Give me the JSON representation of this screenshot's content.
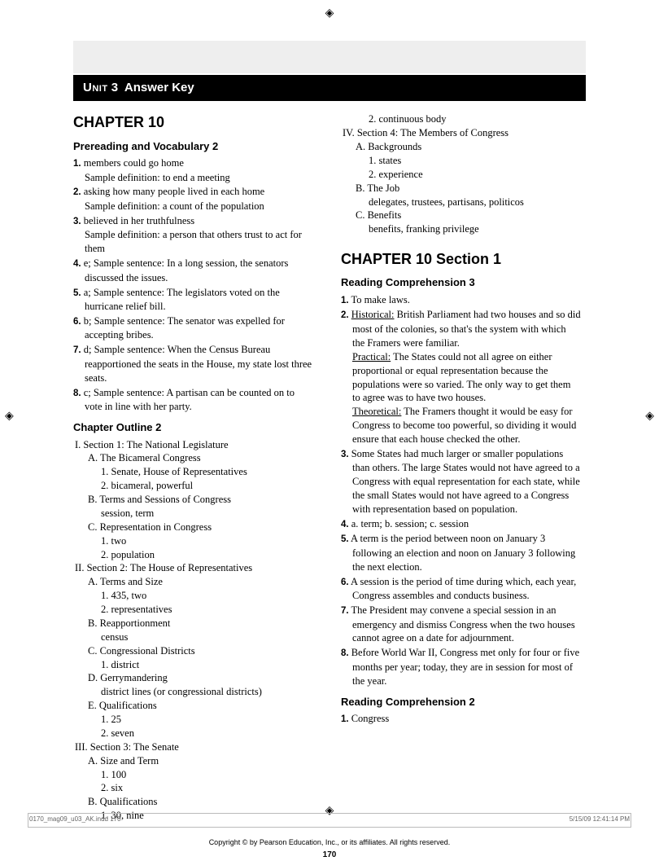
{
  "reg_mark": "◈",
  "header": {
    "unit_label": "Unit",
    "unit_num": "3",
    "title": "Answer Key"
  },
  "left": {
    "chapter": "CHAPTER 10",
    "sec1": "Prereading and Vocabulary  2",
    "items1": [
      {
        "n": "1.",
        "t": "members could go home\nSample definition: to end a meeting"
      },
      {
        "n": "2.",
        "t": "asking how many people lived in each home\nSample definition: a count of the population"
      },
      {
        "n": "3.",
        "t": "believed in her truthfulness\nSample definition: a person that others trust to act for them"
      },
      {
        "n": "4.",
        "t": "e; Sample sentence: In a long session, the senators discussed the issues."
      },
      {
        "n": "5.",
        "t": "a; Sample sentence: The legislators voted on the hurricane relief bill."
      },
      {
        "n": "6.",
        "t": "b; Sample sentence: The senator was expelled for accepting bribes."
      },
      {
        "n": "7.",
        "t": "d; Sample sentence: When the Census Bureau reapportioned the seats in the House, my state lost three seats."
      },
      {
        "n": "8.",
        "t": "c; Sample sentence: A partisan can be counted on to vote in line with her party."
      }
    ],
    "sec2": "Chapter Outline  2",
    "outline": [
      {
        "lv": 1,
        "t": "I. Section 1: The National Legislature"
      },
      {
        "lv": 2,
        "t": "A. The Bicameral Congress"
      },
      {
        "lv": 3,
        "t": "1. Senate, House of Representatives"
      },
      {
        "lv": 3,
        "t": "2. bicameral, powerful"
      },
      {
        "lv": 2,
        "t": "B. Terms and Sessions of Congress"
      },
      {
        "lv": 3,
        "t": "session, term"
      },
      {
        "lv": 2,
        "t": "C. Representation in Congress"
      },
      {
        "lv": 3,
        "t": "1. two"
      },
      {
        "lv": 3,
        "t": "2. population"
      },
      {
        "lv": 1,
        "t": "II. Section 2: The House of Representatives"
      },
      {
        "lv": 2,
        "t": "A. Terms and Size"
      },
      {
        "lv": 3,
        "t": "1. 435, two"
      },
      {
        "lv": 3,
        "t": "2. representatives"
      },
      {
        "lv": 2,
        "t": "B. Reapportionment"
      },
      {
        "lv": 3,
        "t": "census"
      },
      {
        "lv": 2,
        "t": "C. Congressional Districts"
      },
      {
        "lv": 3,
        "t": "1. district"
      },
      {
        "lv": 2,
        "t": "D. Gerrymandering"
      },
      {
        "lv": 3,
        "t": "district lines (or congressional districts)"
      },
      {
        "lv": 2,
        "t": "E. Qualifications"
      },
      {
        "lv": 3,
        "t": "1. 25"
      },
      {
        "lv": 3,
        "t": "2. seven"
      },
      {
        "lv": 1,
        "t": "III. Section 3: The Senate"
      },
      {
        "lv": 2,
        "t": "A. Size and Term"
      },
      {
        "lv": 3,
        "t": "1. 100"
      },
      {
        "lv": 3,
        "t": "2. six"
      },
      {
        "lv": 2,
        "t": "B. Qualifications"
      },
      {
        "lv": 3,
        "t": "1. 30, nine"
      }
    ]
  },
  "right": {
    "outline_cont": [
      {
        "lv": 3,
        "t": "2. continuous body"
      },
      {
        "lv": 1,
        "t": "IV. Section 4: The Members of Congress"
      },
      {
        "lv": 2,
        "t": "A. Backgrounds"
      },
      {
        "lv": 3,
        "t": "1. states"
      },
      {
        "lv": 3,
        "t": "2. experience"
      },
      {
        "lv": 2,
        "t": "B. The Job"
      },
      {
        "lv": 3,
        "t": "delegates, trustees, partisans, politicos"
      },
      {
        "lv": 2,
        "t": "C. Benefits"
      },
      {
        "lv": 3,
        "t": "benefits, franking privilege"
      }
    ],
    "chapter2": "CHAPTER 10  Section 1",
    "sec3": "Reading Comprehension  3",
    "items3": [
      {
        "n": "1.",
        "html": "To make laws."
      },
      {
        "n": "2.",
        "html": "<span class='u'>Historical:</span> British Parliament had two houses and so did most of the colonies, so that's the system with which the Framers were familiar.<br><span class='u'>Practical:</span> The States could not all agree on either proportional or equal representation because the populations were so varied. The only way to get them to agree was to have two houses.<br><span class='u'>Theoretical:</span> The Framers thought it would be easy for Congress to become too powerful, so dividing it would ensure that each house checked the other."
      },
      {
        "n": "3.",
        "html": "Some States had much larger or smaller populations than others. The large States would not have agreed to a Congress with equal representation for each state, while the small States would not have agreed to a Congress with representation based on population."
      },
      {
        "n": "4.",
        "html": "a. term; b. session; c. session"
      },
      {
        "n": "5.",
        "html": "A term is the period between noon on January 3 following an election and noon on January 3 following the next election."
      },
      {
        "n": "6.",
        "html": "A session is the period of time during which, each year, Congress assembles and conducts business."
      },
      {
        "n": "7.",
        "html": "The President may convene a special session in an emergency and dismiss Congress when the two houses cannot agree on a date for adjournment."
      },
      {
        "n": "8.",
        "html": "Before World War II, Congress met only for four or five months per year; today, they are in session for most of the year."
      }
    ],
    "sec4": "Reading Comprehension  2",
    "items4": [
      {
        "n": "1.",
        "t": "Congress"
      }
    ]
  },
  "footer": {
    "copyright": "Copyright © by Pearson Education, Inc., or its affiliates. All rights reserved.",
    "page": "170",
    "meta_left": "0170_mag09_u03_AK.indd   170",
    "meta_right": "5/15/09   12:41:14 PM"
  }
}
